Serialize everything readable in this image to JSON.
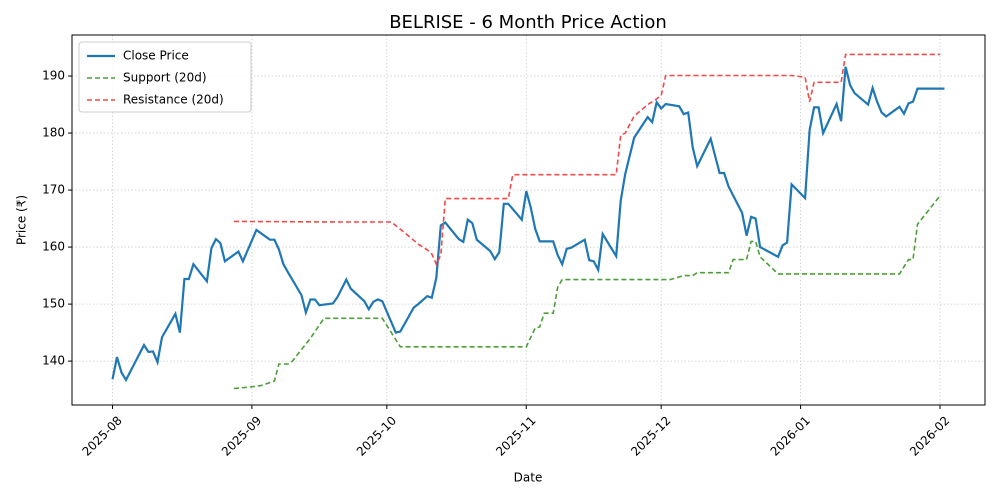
{
  "chart_data": {
    "type": "line",
    "title": "BELRISE - 6 Month Price Action",
    "xlabel": "Date",
    "ylabel": "Price (₹)",
    "xlim": [
      "2025-07-23",
      "2026-02-11"
    ],
    "xticks": [
      "2025-08",
      "2025-09",
      "2025-10",
      "2025-11",
      "2025-12",
      "2026-01",
      "2026-02"
    ],
    "ylim": [
      132.3,
      197.2
    ],
    "yticks": [
      140,
      150,
      160,
      170,
      180,
      190
    ],
    "grid": true,
    "legend": "upper left",
    "series": [
      {
        "name": "Close Price",
        "color": "#1f77b4",
        "linestyle": "solid",
        "x": [
          "2025-08-01",
          "2025-08-02",
          "2025-08-03",
          "2025-08-04",
          "2025-08-08",
          "2025-08-09",
          "2025-08-10",
          "2025-08-11",
          "2025-08-12",
          "2025-08-15",
          "2025-08-16",
          "2025-08-17",
          "2025-08-18",
          "2025-08-19",
          "2025-08-22",
          "2025-08-23",
          "2025-08-24",
          "2025-08-25",
          "2025-08-26",
          "2025-08-29",
          "2025-08-30",
          "2025-09-02",
          "2025-09-05",
          "2025-09-06",
          "2025-09-07",
          "2025-09-08",
          "2025-09-09",
          "2025-09-12",
          "2025-09-13",
          "2025-09-14",
          "2025-09-15",
          "2025-09-16",
          "2025-09-19",
          "2025-09-20",
          "2025-09-22",
          "2025-09-23",
          "2025-09-26",
          "2025-09-27",
          "2025-09-28",
          "2025-09-29",
          "2025-09-30",
          "2025-10-03",
          "2025-10-04",
          "2025-10-07",
          "2025-10-08",
          "2025-10-10",
          "2025-10-11",
          "2025-10-12",
          "2025-10-13",
          "2025-10-14",
          "2025-10-17",
          "2025-10-18",
          "2025-10-19",
          "2025-10-20",
          "2025-10-21",
          "2025-10-24",
          "2025-10-25",
          "2025-10-26",
          "2025-10-27",
          "2025-10-28",
          "2025-10-31",
          "2025-11-01",
          "2025-11-02",
          "2025-11-03",
          "2025-11-04",
          "2025-11-07",
          "2025-11-08",
          "2025-11-09",
          "2025-11-10",
          "2025-11-11",
          "2025-11-14",
          "2025-11-15",
          "2025-11-16",
          "2025-11-17",
          "2025-11-18",
          "2025-11-21",
          "2025-11-22",
          "2025-11-23",
          "2025-11-25",
          "2025-11-28",
          "2025-11-29",
          "2025-11-30",
          "2025-12-01",
          "2025-12-02",
          "2025-12-05",
          "2025-12-06",
          "2025-12-07",
          "2025-12-08",
          "2025-12-09",
          "2025-12-12",
          "2025-12-13",
          "2025-12-14",
          "2025-12-15",
          "2025-12-16",
          "2025-12-19",
          "2025-12-20",
          "2025-12-21",
          "2025-12-22",
          "2025-12-23",
          "2025-12-27",
          "2025-12-28",
          "2025-12-29",
          "2025-12-30",
          "2026-01-02",
          "2026-01-03",
          "2026-01-04",
          "2026-01-05",
          "2026-01-06",
          "2026-01-09",
          "2026-01-10",
          "2026-01-11",
          "2026-01-12",
          "2026-01-13",
          "2026-01-16",
          "2026-01-17",
          "2026-01-18",
          "2026-01-19",
          "2026-01-20",
          "2026-01-23",
          "2026-01-24",
          "2026-01-25",
          "2026-01-26",
          "2026-01-27",
          "2026-02-02"
        ],
        "values": [
          136.8,
          140.7,
          138.0,
          136.7,
          142.8,
          141.6,
          141.7,
          139.8,
          144.2,
          148.3,
          145.0,
          154.4,
          154.4,
          157.0,
          154.0,
          159.8,
          161.4,
          160.7,
          157.5,
          159.2,
          157.5,
          163.0,
          161.3,
          161.3,
          159.6,
          157.0,
          155.6,
          151.6,
          148.5,
          150.8,
          150.8,
          149.8,
          150.1,
          151.2,
          154.3,
          152.7,
          150.5,
          149.1,
          150.4,
          150.8,
          150.5,
          145.0,
          145.2,
          149.4,
          150.0,
          151.4,
          151.1,
          154.6,
          163.8,
          164.3,
          161.4,
          160.9,
          164.8,
          164.2,
          161.3,
          159.3,
          157.9,
          159.1,
          167.6,
          167.6,
          164.8,
          169.8,
          167.0,
          163.2,
          161.0,
          161.0,
          158.6,
          157.0,
          159.7,
          159.9,
          161.3,
          157.7,
          157.5,
          156.0,
          162.3,
          158.4,
          168.1,
          172.8,
          179.2,
          182.8,
          181.9,
          185.4,
          184.3,
          185.1,
          184.7,
          183.3,
          183.6,
          177.5,
          174.2,
          179.0,
          176.0,
          173.0,
          173.0,
          170.6,
          166.0,
          162.0,
          165.3,
          165.0,
          160.0,
          158.3,
          160.3,
          160.8,
          171.0,
          168.6,
          180.5,
          184.5,
          184.5,
          180.0,
          185.1,
          182.1,
          191.6,
          188.4,
          187.0,
          185.0,
          187.9,
          185.5,
          183.6,
          182.9,
          184.6,
          183.4,
          185.2,
          185.5,
          187.8,
          187.8
        ]
      },
      {
        "name": "Support (20d)",
        "color": "#4c9f38",
        "linestyle": "dashed",
        "x": [
          "2025-08-28",
          "2025-09-01",
          "2025-09-03",
          "2025-09-06",
          "2025-09-07",
          "2025-09-09",
          "2025-09-10",
          "2025-09-14",
          "2025-09-17",
          "2025-09-30",
          "2025-10-02",
          "2025-10-04",
          "2025-11-01",
          "2025-11-03",
          "2025-11-04",
          "2025-11-05",
          "2025-11-07",
          "2025-11-08",
          "2025-11-09",
          "2025-12-03",
          "2025-12-06",
          "2025-12-08",
          "2025-12-09",
          "2025-12-16",
          "2025-12-17",
          "2025-12-20",
          "2025-12-21",
          "2025-12-22",
          "2025-12-23",
          "2025-12-27",
          "2026-01-23",
          "2026-01-25",
          "2026-01-26",
          "2026-01-27",
          "2026-02-01"
        ],
        "values": [
          135.2,
          135.5,
          135.7,
          136.5,
          139.5,
          139.5,
          140.0,
          144.0,
          147.5,
          147.5,
          145.0,
          142.5,
          142.5,
          145.8,
          146.0,
          148.4,
          148.4,
          153.0,
          154.3,
          154.3,
          155.0,
          155.0,
          155.5,
          155.5,
          157.8,
          157.8,
          161.0,
          161.0,
          158.3,
          155.3,
          155.3,
          157.8,
          157.8,
          164.0,
          169.0
        ]
      },
      {
        "name": "Resistance (20d)",
        "color": "#f04a4a",
        "linestyle": "dashed",
        "x": [
          "2025-08-28",
          "2025-09-20",
          "2025-10-02",
          "2025-10-05",
          "2025-10-08",
          "2025-10-10",
          "2025-10-11",
          "2025-10-12",
          "2025-10-13",
          "2025-10-14",
          "2025-10-28",
          "2025-10-29",
          "2025-11-21",
          "2025-11-22",
          "2025-11-23",
          "2025-11-25",
          "2025-11-28",
          "2025-11-30",
          "2025-12-01",
          "2025-12-02",
          "2025-12-30",
          "2026-01-02",
          "2026-01-03",
          "2026-01-04",
          "2026-01-10",
          "2026-01-11",
          "2026-02-01"
        ],
        "values": [
          164.5,
          164.4,
          164.4,
          162.5,
          160.5,
          159.5,
          158.8,
          157.0,
          158.6,
          168.5,
          168.5,
          172.7,
          172.7,
          179.6,
          180.0,
          183.0,
          185.0,
          186.0,
          186.6,
          190.1,
          190.1,
          189.8,
          185.5,
          188.9,
          188.9,
          193.8,
          193.8
        ]
      }
    ]
  }
}
